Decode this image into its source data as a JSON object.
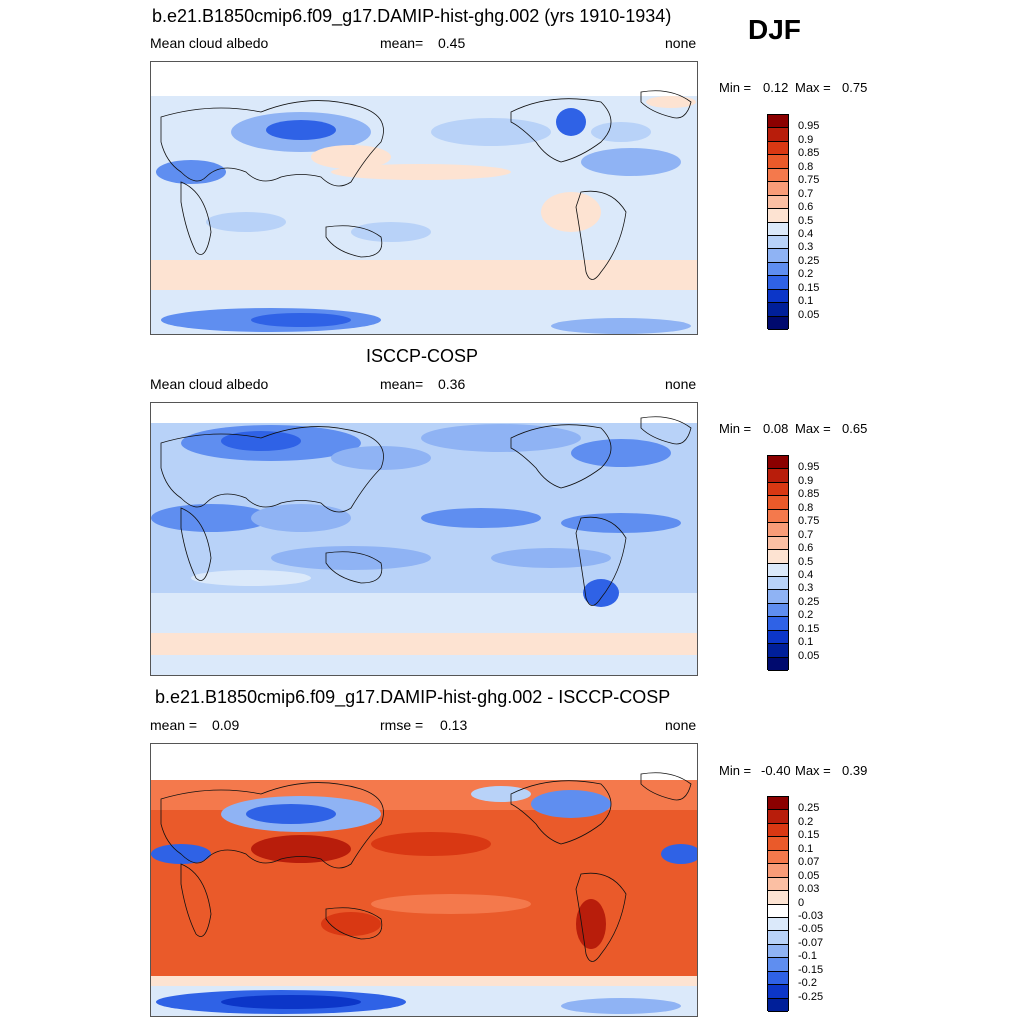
{
  "season": "DJF",
  "panels": [
    {
      "title": "b.e21.B1850cmip6.f09_g17.DAMIP-hist-ghg.002 (yrs 1910-1934)",
      "left_label": "Mean cloud albedo",
      "stat_label": "mean=",
      "stat_value": "0.45",
      "right_label": "none",
      "min_label": "Min =",
      "min": "0.12",
      "max_label": "Max =",
      "max": "0.75",
      "colorbar": {
        "levels": [
          "0.95",
          "0.9",
          "0.85",
          "0.8",
          "0.75",
          "0.7",
          "0.6",
          "0.5",
          "0.4",
          "0.3",
          "0.25",
          "0.2",
          "0.15",
          "0.1",
          "0.05"
        ],
        "colors": [
          "#8b0000",
          "#b81d0b",
          "#d93813",
          "#ea5a2a",
          "#f4794c",
          "#f89c78",
          "#fbbfa3",
          "#fde3d2",
          "#dbe9fa",
          "#b8d2f8",
          "#8fb3f4",
          "#5f8ef0",
          "#2f62e6",
          "#0c36c8",
          "#001f99",
          "#000a6e"
        ]
      },
      "map_style": "model"
    },
    {
      "title": "ISCCP-COSP",
      "left_label": "Mean cloud albedo",
      "stat_label": "mean=",
      "stat_value": "0.36",
      "right_label": "none",
      "min_label": "Min =",
      "min": "0.08",
      "max_label": "Max =",
      "max": "0.65",
      "colorbar": {
        "levels": [
          "0.95",
          "0.9",
          "0.85",
          "0.8",
          "0.75",
          "0.7",
          "0.6",
          "0.5",
          "0.4",
          "0.3",
          "0.25",
          "0.2",
          "0.15",
          "0.1",
          "0.05"
        ],
        "colors": [
          "#8b0000",
          "#b81d0b",
          "#d93813",
          "#ea5a2a",
          "#f4794c",
          "#f89c78",
          "#fbbfa3",
          "#fde3d2",
          "#dbe9fa",
          "#b8d2f8",
          "#8fb3f4",
          "#5f8ef0",
          "#2f62e6",
          "#0c36c8",
          "#001f99",
          "#000a6e"
        ]
      },
      "map_style": "obs"
    },
    {
      "title": "b.e21.B1850cmip6.f09_g17.DAMIP-hist-ghg.002 - ISCCP-COSP",
      "left_label": "mean =",
      "left_value": "0.09",
      "stat_label": "rmse =",
      "stat_value": "0.13",
      "right_label": "none",
      "min_label": "Min =",
      "min": "-0.40",
      "max_label": "Max =",
      "max": "0.39",
      "colorbar": {
        "levels": [
          "0.25",
          "0.2",
          "0.15",
          "0.1",
          "0.07",
          "0.05",
          "0.03",
          "0",
          "-0.03",
          "-0.05",
          "-0.07",
          "-0.1",
          "-0.15",
          "-0.2",
          "-0.25"
        ],
        "colors": [
          "#8b0000",
          "#b81d0b",
          "#d93813",
          "#ea5a2a",
          "#f4794c",
          "#f89c78",
          "#fbbfa3",
          "#fde3d2",
          "#ffffff",
          "#dbe9fa",
          "#b8d2f8",
          "#8fb3f4",
          "#5f8ef0",
          "#2f62e6",
          "#0c36c8",
          "#001f99"
        ]
      },
      "map_style": "diff"
    }
  ]
}
